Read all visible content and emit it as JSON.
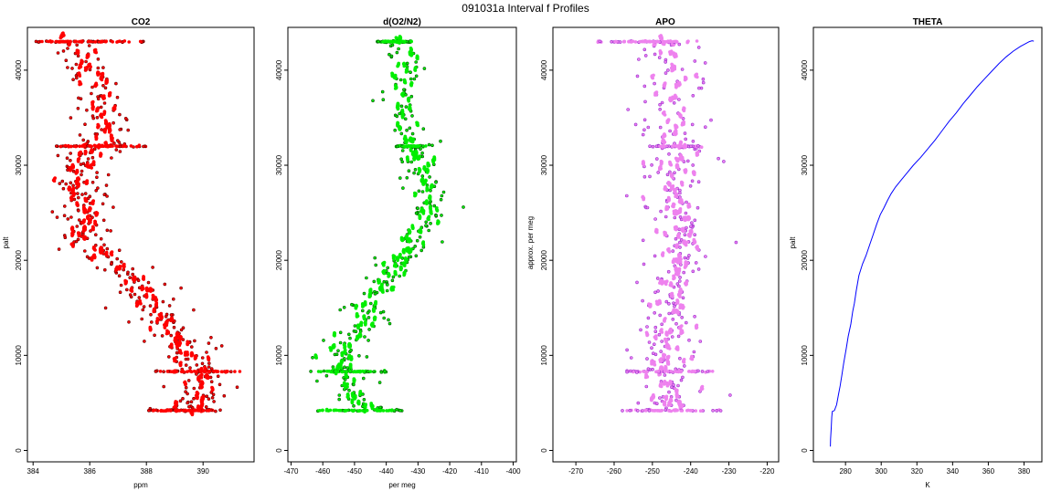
{
  "figure": {
    "title": "091031a   Interval f Profiles"
  },
  "colors": {
    "co2_fill": "#ff0000",
    "co2_edge": "#6e0000",
    "o2_fill": "#00ee00",
    "o2_edge": "#005a00",
    "apo_fill": "#ee82ee",
    "apo_edge": "#9b30d0",
    "theta_line": "#0000ff"
  },
  "chart_data": [
    {
      "type": "scatter",
      "title": "CO2",
      "xlabel": "ppm",
      "ylabel": "palt",
      "xlim": [
        383.8,
        391.8
      ],
      "ylim": [
        -1200,
        44500
      ],
      "x_ticks": [
        384,
        386,
        388,
        390
      ],
      "y_ticks": [
        0,
        10000,
        20000,
        30000,
        40000
      ],
      "series": [
        {
          "profile": [
            [
              385.2,
              43000
            ],
            [
              385.8,
              41500
            ],
            [
              386.0,
              40000
            ],
            [
              386.3,
              38500
            ],
            [
              386.5,
              37000
            ],
            [
              386.5,
              35500
            ],
            [
              386.6,
              34000
            ],
            [
              386.4,
              33000
            ],
            [
              386.3,
              32000
            ],
            [
              386.0,
              31000
            ],
            [
              385.7,
              30000
            ],
            [
              385.6,
              29000
            ],
            [
              385.6,
              28000
            ],
            [
              385.8,
              27000
            ],
            [
              385.7,
              26000
            ],
            [
              385.8,
              25000
            ],
            [
              385.8,
              24000
            ],
            [
              385.9,
              23000
            ],
            [
              385.9,
              22000
            ],
            [
              386.1,
              21000
            ],
            [
              386.7,
              20000
            ],
            [
              387.3,
              19000
            ],
            [
              387.6,
              18000
            ],
            [
              387.8,
              17000
            ],
            [
              388.2,
              16000
            ],
            [
              388.3,
              15000
            ],
            [
              388.5,
              14000
            ],
            [
              388.7,
              13000
            ],
            [
              389.1,
              12000
            ],
            [
              389.3,
              11000
            ],
            [
              389.4,
              10000
            ],
            [
              389.6,
              9000
            ],
            [
              389.8,
              8300
            ],
            [
              389.9,
              7500
            ],
            [
              389.8,
              6500
            ],
            [
              389.9,
              5500
            ],
            [
              389.7,
              4700
            ],
            [
              389.5,
              4200
            ]
          ],
          "spread": 0.5,
          "points_per_level": 9,
          "bands": [
            [
              43000,
              384.0,
              387.9,
              55
            ],
            [
              32000,
              384.8,
              388.0,
              45
            ],
            [
              8300,
              388.3,
              391.3,
              45
            ],
            [
              4200,
              388.0,
              390.8,
              45
            ]
          ]
        }
      ]
    },
    {
      "type": "scatter",
      "title": "d(O2/N2)",
      "xlabel": "per meg",
      "ylabel": "",
      "xlim": [
        -471,
        -399
      ],
      "ylim": [
        -1200,
        44500
      ],
      "x_ticks": [
        -470,
        -460,
        -450,
        -440,
        -430,
        -420,
        -410,
        -400
      ],
      "y_ticks": [
        0,
        10000,
        20000,
        30000,
        40000
      ],
      "series": [
        {
          "profile": [
            [
              -437,
              43000
            ],
            [
              -434,
              41500
            ],
            [
              -433,
              40000
            ],
            [
              -435,
              38500
            ],
            [
              -436,
              37000
            ],
            [
              -435,
              35500
            ],
            [
              -434,
              34000
            ],
            [
              -433,
              33000
            ],
            [
              -432,
              32000
            ],
            [
              -431,
              31000
            ],
            [
              -430,
              30000
            ],
            [
              -429,
              29000
            ],
            [
              -428,
              28000
            ],
            [
              -427,
              27000
            ],
            [
              -427,
              26000
            ],
            [
              -428,
              25000
            ],
            [
              -427,
              24000
            ],
            [
              -430,
              23000
            ],
            [
              -431,
              22000
            ],
            [
              -433,
              21000
            ],
            [
              -436,
              20000
            ],
            [
              -437,
              19000
            ],
            [
              -440,
              18000
            ],
            [
              -442,
              17000
            ],
            [
              -444,
              16000
            ],
            [
              -446,
              15000
            ],
            [
              -446,
              14000
            ],
            [
              -448,
              13000
            ],
            [
              -451,
              12000
            ],
            [
              -452,
              11000
            ],
            [
              -454,
              10000
            ],
            [
              -455,
              9000
            ],
            [
              -454,
              8300
            ],
            [
              -452,
              7000
            ],
            [
              -450,
              6000
            ],
            [
              -448,
              5000
            ],
            [
              -447,
              4200
            ]
          ],
          "spread": 3.5,
          "points_per_level": 7,
          "bands": [
            [
              43000,
              -443.0,
              -432.0,
              50
            ],
            [
              32000,
              -437.0,
              -427.5,
              30
            ],
            [
              8300,
              -464.0,
              -440.0,
              35
            ],
            [
              4200,
              -462.0,
              -435.0,
              35
            ]
          ]
        }
      ]
    },
    {
      "type": "scatter",
      "title": "APO",
      "xlabel": "",
      "ylabel": "approx. per meg",
      "xlim": [
        -276,
        -217
      ],
      "ylim": [
        -1200,
        44500
      ],
      "x_ticks": [
        -270,
        -260,
        -250,
        -240,
        -230,
        -220
      ],
      "y_ticks": [
        0,
        10000,
        20000,
        30000,
        40000
      ],
      "series": [
        {
          "profile": [
            [
              -248,
              43000
            ],
            [
              -246,
              41500
            ],
            [
              -245,
              40000
            ],
            [
              -245,
              38500
            ],
            [
              -245,
              37000
            ],
            [
              -245,
              35500
            ],
            [
              -245,
              34000
            ],
            [
              -244,
              33000
            ],
            [
              -244,
              32000
            ],
            [
              -244,
              31000
            ],
            [
              -244,
              30000
            ],
            [
              -244,
              29000
            ],
            [
              -244,
              28000
            ],
            [
              -244,
              27000
            ],
            [
              -244,
              26000
            ],
            [
              -243,
              25000
            ],
            [
              -243,
              24000
            ],
            [
              -243,
              23000
            ],
            [
              -243,
              22000
            ],
            [
              -243,
              21000
            ],
            [
              -244,
              20000
            ],
            [
              -244,
              19000
            ],
            [
              -245,
              18000
            ],
            [
              -245,
              17000
            ],
            [
              -245,
              16000
            ],
            [
              -246,
              15000
            ],
            [
              -246,
              14000
            ],
            [
              -246,
              13000
            ],
            [
              -247,
              12000
            ],
            [
              -247,
              11000
            ],
            [
              -247,
              10000
            ],
            [
              -247,
              9000
            ],
            [
              -247,
              8300
            ],
            [
              -247,
              7000
            ],
            [
              -246,
              6000
            ],
            [
              -245,
              5000
            ],
            [
              -245,
              4200
            ]
          ],
          "spread": 4.5,
          "points_per_level": 7,
          "bands": [
            [
              43000,
              -265.0,
              -238.0,
              55
            ],
            [
              32000,
              -251.0,
              -237.0,
              30
            ],
            [
              8300,
              -257.0,
              -234.0,
              35
            ],
            [
              4200,
              -258.0,
              -232.0,
              35
            ]
          ]
        }
      ]
    },
    {
      "type": "line",
      "title": "THETA",
      "xlabel": "K",
      "ylabel": "palt",
      "xlim": [
        262,
        390
      ],
      "ylim": [
        -1200,
        44500
      ],
      "x_ticks": [
        280,
        300,
        320,
        340,
        360,
        380
      ],
      "y_ticks": [
        0,
        10000,
        20000,
        30000,
        40000
      ],
      "series": [
        {
          "points": [
            [
              271.5,
              400
            ],
            [
              271.6,
              1200
            ],
            [
              272.0,
              2300
            ],
            [
              272.3,
              3500
            ],
            [
              272.6,
              4100
            ],
            [
              273.8,
              4200
            ],
            [
              275.0,
              4800
            ],
            [
              276.0,
              5800
            ],
            [
              277.0,
              6800
            ],
            [
              278.0,
              8000
            ],
            [
              279.0,
              9200
            ],
            [
              280.5,
              10800
            ],
            [
              281.5,
              12000
            ],
            [
              283.0,
              13300
            ],
            [
              284.0,
              14600
            ],
            [
              285.0,
              15500
            ],
            [
              286.0,
              16800
            ],
            [
              287.5,
              18400
            ],
            [
              289.5,
              19600
            ],
            [
              291.5,
              20500
            ],
            [
              293.5,
              21600
            ],
            [
              295.5,
              22700
            ],
            [
              297.5,
              23800
            ],
            [
              299.5,
              24800
            ],
            [
              301.5,
              25500
            ],
            [
              303.5,
              26300
            ],
            [
              305.5,
              27000
            ],
            [
              308.0,
              27700
            ],
            [
              311.0,
              28400
            ],
            [
              314.5,
              29200
            ],
            [
              318.0,
              30000
            ],
            [
              322.0,
              30800
            ],
            [
              326.0,
              31700
            ],
            [
              330.0,
              32600
            ],
            [
              334.0,
              33600
            ],
            [
              338.0,
              34600
            ],
            [
              342.0,
              35500
            ],
            [
              346.0,
              36500
            ],
            [
              350.0,
              37400
            ],
            [
              354.0,
              38300
            ],
            [
              358.0,
              39100
            ],
            [
              362.0,
              39900
            ],
            [
              366.0,
              40700
            ],
            [
              370.0,
              41400
            ],
            [
              374.0,
              42000
            ],
            [
              378.0,
              42500
            ],
            [
              381.0,
              42800
            ],
            [
              383.0,
              43000
            ],
            [
              384.5,
              43100
            ],
            [
              385.5,
              43050
            ]
          ]
        }
      ]
    }
  ]
}
